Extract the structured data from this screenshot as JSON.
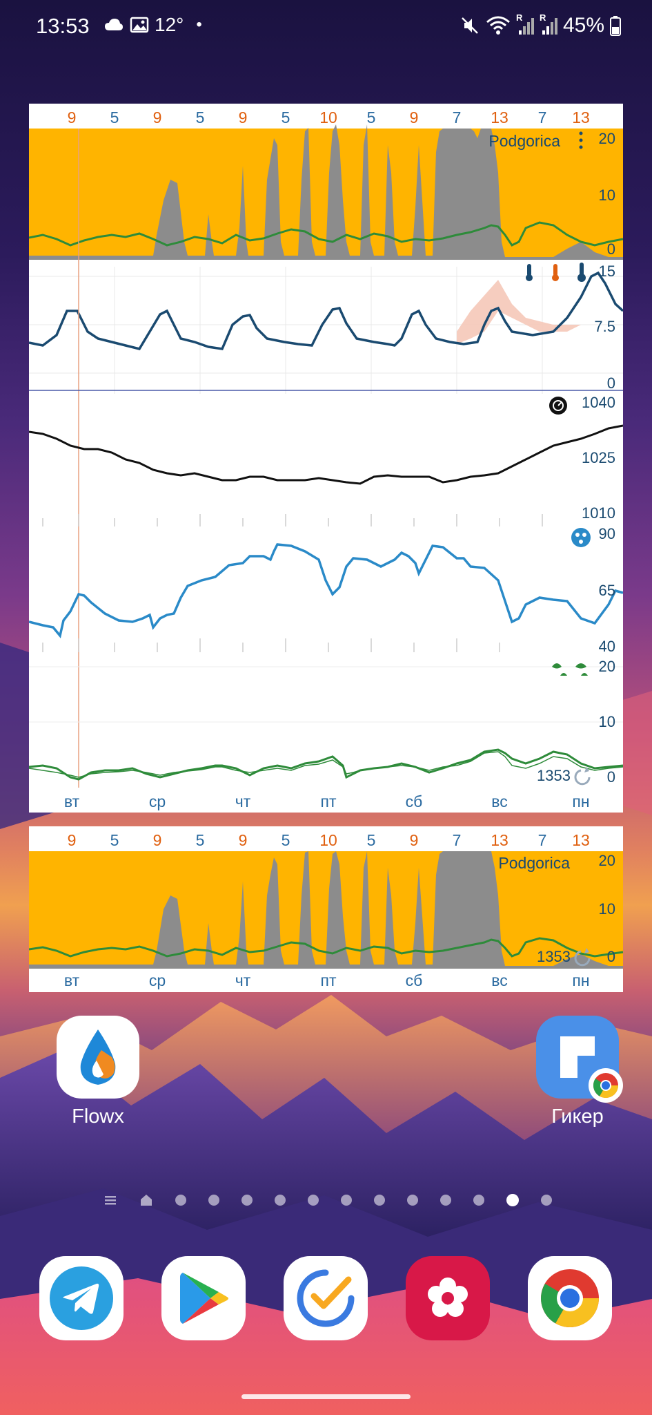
{
  "status_bar": {
    "time": "13:53",
    "temp": "12°",
    "dot": "•",
    "battery": "45%",
    "sig1": "R",
    "sig2": "R",
    "icons": [
      "cloud-icon",
      "image-icon",
      "mute-icon",
      "wifi-icon",
      "signal-icon",
      "battery-icon"
    ]
  },
  "widget_large": {
    "hour_ticks": [
      "9",
      "5",
      "9",
      "5",
      "9",
      "5",
      "10",
      "5",
      "9",
      "7",
      "13",
      "7",
      "13"
    ],
    "location": "Podgorica",
    "precip_axis": [
      "20",
      "10",
      "0"
    ],
    "temp_axis": [
      "15",
      "7.5",
      "0"
    ],
    "pressure_axis": [
      "1040",
      "1025",
      "1010"
    ],
    "humidity_axis": [
      "90",
      "65",
      "40"
    ],
    "wind_axis": [
      "20",
      "10",
      "0"
    ],
    "elevation": "1353",
    "days": [
      "вт",
      "ср",
      "чт",
      "пт",
      "сб",
      "вс",
      "пн"
    ]
  },
  "widget_small": {
    "hour_ticks": [
      "9",
      "5",
      "9",
      "5",
      "9",
      "5",
      "10",
      "5",
      "9",
      "7",
      "13",
      "7",
      "13"
    ],
    "location": "Podgorica",
    "precip_axis": [
      "20",
      "10",
      "0"
    ],
    "elevation": "1353",
    "days": [
      "вт",
      "ср",
      "чт",
      "пт",
      "сб",
      "вс",
      "пн"
    ]
  },
  "apps": {
    "flowx": "Flowx",
    "giker": "Гикер"
  },
  "dock": [
    "telegram-icon",
    "play-store-icon",
    "tasks-icon",
    "gallery-icon",
    "chrome-icon"
  ],
  "colors": {
    "precip_bg": "#ffb400",
    "precip_fill": "#8c8c8c",
    "wind_line": "#2e8b3a",
    "temp_line": "#1a4a70",
    "humidity_line": "#2a8ac8",
    "tick_orange": "#e06010",
    "tick_blue": "#2a6aa0"
  },
  "chart_data": [
    {
      "type": "area",
      "location": "Podgorica",
      "ylim": [
        0,
        20
      ],
      "x": [
        "вт",
        "ср",
        "чт",
        "пт",
        "сб",
        "вс",
        "пн"
      ],
      "series": []
    },
    {
      "type": "line",
      "ylim": [
        0,
        15
      ],
      "x": [
        "вт",
        "ср",
        "чт",
        "пт",
        "сб",
        "вс",
        "пн"
      ],
      "series": []
    },
    {
      "type": "line",
      "ylim": [
        1010,
        1040
      ],
      "x": [
        "вт",
        "ср",
        "чт",
        "пт",
        "сб",
        "вс",
        "пн"
      ],
      "series": []
    },
    {
      "type": "line",
      "ylim": [
        40,
        90
      ],
      "x": [
        "вт",
        "ср",
        "чт",
        "пт",
        "сб",
        "вс",
        "пн"
      ],
      "series": []
    },
    {
      "type": "line",
      "ylim": [
        0,
        20
      ],
      "x": [
        "вт",
        "ср",
        "чт",
        "пт",
        "сб",
        "вс",
        "пн"
      ],
      "series": []
    }
  ]
}
